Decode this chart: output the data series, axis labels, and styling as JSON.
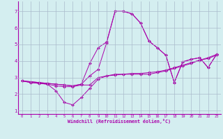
{
  "xlabel": "Windchill (Refroidissement éolien,°C)",
  "background_color": "#d4eef0",
  "line_color": "#aa00aa",
  "grid_color": "#aabbcc",
  "spine_color": "#aa00aa",
  "xlim": [
    -0.5,
    23.5
  ],
  "ylim": [
    0.8,
    7.6
  ],
  "xticks": [
    0,
    1,
    2,
    3,
    4,
    5,
    6,
    7,
    8,
    9,
    10,
    11,
    12,
    13,
    14,
    15,
    16,
    17,
    18,
    19,
    20,
    21,
    22,
    23
  ],
  "yticks": [
    1,
    2,
    3,
    4,
    5,
    6,
    7
  ],
  "series": [
    [
      2.8,
      2.7,
      2.65,
      2.6,
      2.2,
      1.5,
      1.35,
      1.8,
      2.35,
      2.9,
      3.1,
      3.15,
      3.2,
      3.2,
      3.2,
      3.2,
      3.3,
      3.4,
      3.55,
      3.7,
      3.85,
      4.05,
      4.15,
      4.35
    ],
    [
      2.8,
      2.7,
      2.65,
      2.6,
      2.5,
      2.45,
      2.45,
      2.55,
      2.55,
      3.0,
      3.1,
      3.2,
      3.2,
      3.25,
      3.25,
      3.3,
      3.35,
      3.45,
      3.6,
      3.75,
      3.9,
      4.05,
      4.2,
      4.4
    ],
    [
      2.8,
      2.75,
      2.7,
      2.65,
      2.6,
      2.55,
      2.5,
      2.6,
      3.1,
      3.5,
      5.1,
      7.0,
      7.0,
      6.85,
      6.3,
      5.2,
      4.8,
      4.35,
      2.7,
      3.95,
      4.1,
      4.2,
      3.6,
      4.4
    ],
    [
      2.8,
      2.75,
      2.7,
      2.65,
      2.6,
      2.55,
      2.5,
      2.6,
      3.85,
      4.8,
      5.15,
      7.0,
      7.0,
      6.85,
      6.3,
      5.2,
      4.8,
      4.35,
      2.7,
      3.95,
      4.1,
      4.2,
      3.6,
      4.4
    ]
  ]
}
